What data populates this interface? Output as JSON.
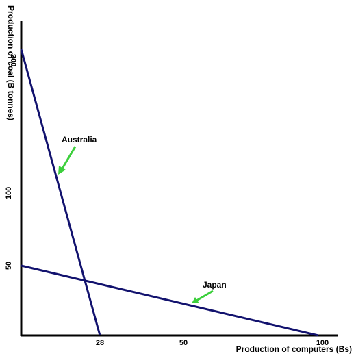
{
  "chart_data": {
    "type": "line",
    "xlabel": "Production of computers (Bs)",
    "ylabel": "Production of coal (B tonnes)",
    "x_ticks": [
      {
        "value": 28,
        "label": "28"
      },
      {
        "value": 50,
        "label": "50"
      },
      {
        "value": 100,
        "label": "100"
      }
    ],
    "y_ticks": [
      {
        "value": 50,
        "label": "50"
      },
      {
        "value": 100,
        "label": "100"
      },
      {
        "value": 200,
        "label": "200"
      }
    ],
    "series": [
      {
        "name": "Australia",
        "x": [
          0,
          28
        ],
        "y": [
          200,
          0
        ]
      },
      {
        "name": "Japan",
        "x": [
          0,
          100
        ],
        "y": [
          50,
          0
        ]
      }
    ],
    "annotations": [
      {
        "text": "Australia",
        "points_to_series": "Australia"
      },
      {
        "text": "Japan",
        "points_to_series": "Japan"
      }
    ],
    "xlim": [
      0,
      100
    ],
    "ylim": [
      0,
      200
    ],
    "grid": false
  },
  "colors": {
    "line": "#12126e",
    "arrow": "#3ccf3c",
    "axis": "#000000"
  }
}
